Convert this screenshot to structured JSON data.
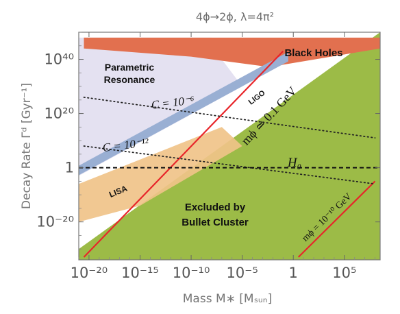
{
  "chart_data": {
    "type": "area",
    "title": "4ϕ→2ϕ,  λ=4π²",
    "xlabel": "Mass M∗ [Mₛᵤₙ]",
    "ylabel": "Decay Rate Γᵈ [Gyr⁻¹]",
    "x_scale": "log10",
    "y_scale": "log10",
    "xlim_log10": [
      -21,
      8.5
    ],
    "ylim_log10": [
      -34,
      50
    ],
    "x_ticks": [
      {
        "label": "10⁻²⁰",
        "log10": -20
      },
      {
        "label": "10⁻¹⁵",
        "log10": -15
      },
      {
        "label": "10⁻¹⁰",
        "log10": -10
      },
      {
        "label": "10⁻⁵",
        "log10": -5
      },
      {
        "label": "1",
        "log10": 0
      },
      {
        "label": "10⁵",
        "log10": 5
      }
    ],
    "y_ticks": [
      {
        "label": "10⁴⁰",
        "log10": 40
      },
      {
        "label": "10²⁰",
        "log10": 20
      },
      {
        "label": "1",
        "log10": 0
      },
      {
        "label": "10⁻²⁰",
        "log10": -20
      }
    ],
    "grid": false,
    "regions": [
      {
        "name": "Parametric Resonance",
        "color": "#e4e1f1",
        "polygon_log10": [
          [
            -21,
            48
          ],
          [
            -21,
            -3
          ],
          [
            -5,
            30
          ],
          [
            -7,
            40
          ],
          [
            -8,
            48
          ]
        ]
      },
      {
        "name": "Excluded by Bullet Cluster",
        "color": "#9cbb47",
        "polygon_log10": [
          [
            -21,
            -30
          ],
          [
            8.5,
            50
          ],
          [
            8.5,
            -34
          ],
          [
            -21,
            -34
          ]
        ]
      },
      {
        "name": "Black Holes",
        "color": "#e2704f",
        "polygon_log10": [
          [
            -20.5,
            48
          ],
          [
            -20.5,
            44
          ],
          [
            -10,
            41
          ],
          [
            -2,
            37
          ],
          [
            -1,
            38
          ],
          [
            8.5,
            44
          ],
          [
            8.5,
            48
          ]
        ]
      },
      {
        "name": "LIGO",
        "color": "#99afd3",
        "band_log10": [
          [
            -21,
            -1
          ],
          [
            -0.5,
            41
          ]
        ],
        "width_log10": 3.5
      },
      {
        "name": "LISA",
        "color": "#f0c389",
        "polygon_log10": [
          [
            -21,
            -6
          ],
          [
            -21,
            -20
          ],
          [
            -15,
            -14
          ],
          [
            -5,
            8
          ],
          [
            -7,
            15
          ]
        ]
      }
    ],
    "lines": [
      {
        "name": "mϕ ≃ 0.1 GeV",
        "style": "solid",
        "color": "#e8252a",
        "points_log10": [
          [
            -20.5,
            -33
          ],
          [
            -1,
            43
          ]
        ]
      },
      {
        "name": "mϕ = 10⁻¹⁰ GeV",
        "style": "solid",
        "color": "#e8252a",
        "points_log10": [
          [
            0.5,
            -33
          ],
          [
            8,
            -5
          ]
        ]
      },
      {
        "name": "C = 10⁻⁶",
        "style": "dotted",
        "color": "#222222",
        "points_log10": [
          [
            -20.5,
            26
          ],
          [
            8,
            11
          ]
        ]
      },
      {
        "name": "C = 10⁻¹²",
        "style": "dotted",
        "color": "#222222",
        "points_log10": [
          [
            -20.5,
            8
          ],
          [
            8,
            -6
          ]
        ]
      },
      {
        "name": "H₀",
        "style": "dashed",
        "color": "#111111",
        "points_log10": [
          [
            -21,
            0
          ],
          [
            8.5,
            0
          ]
        ]
      }
    ],
    "annotations": [
      {
        "name": "black-holes",
        "text": "Black Holes"
      },
      {
        "name": "parametric-line1",
        "text": "Parametric"
      },
      {
        "name": "parametric-line2",
        "text": "Resonance"
      },
      {
        "name": "ligo",
        "text": "LIGO"
      },
      {
        "name": "lisa",
        "text": "LISA"
      },
      {
        "name": "bullet-line1",
        "text": "Excluded by"
      },
      {
        "name": "bullet-line2",
        "text": "Bullet Cluster"
      },
      {
        "name": "c-minus-6",
        "text": "C = 10⁻⁶"
      },
      {
        "name": "c-minus-12",
        "text": "C = 10⁻¹²"
      },
      {
        "name": "h0",
        "text": "H₀"
      },
      {
        "name": "m-phi-01",
        "text": "mϕ ≃ 0.1 GeV"
      },
      {
        "name": "m-phi-1e-10",
        "text": "mϕ = 10⁻¹⁰ GeV"
      }
    ]
  }
}
